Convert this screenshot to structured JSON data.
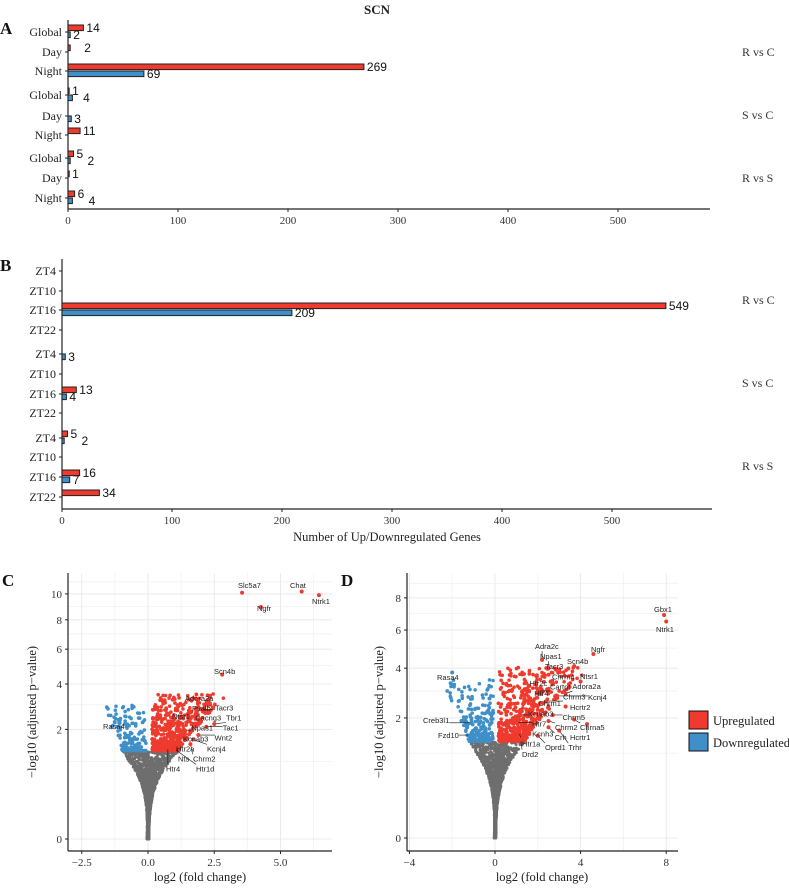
{
  "figure": {
    "title": "SCN",
    "panel_labels": [
      "A",
      "B",
      "C",
      "D"
    ],
    "legend": {
      "items": [
        {
          "label": "Upregulated",
          "color": "#EE3B2E"
        },
        {
          "label": "Downregulated",
          "color": "#3F8FC8"
        }
      ]
    }
  },
  "chart_data": [
    {
      "type": "bar",
      "orientation": "horizontal",
      "panel": "A",
      "title": "SCN",
      "xlabel": "",
      "xlim": [
        0,
        580
      ],
      "xticks": [
        0,
        100,
        200,
        300,
        400,
        500
      ],
      "groups": [
        {
          "label": "R vs C",
          "categories": [
            "Global",
            "Day",
            "Night"
          ],
          "up": [
            14,
            2,
            269
          ],
          "down": [
            2,
            0,
            69
          ]
        },
        {
          "label": "S vs C",
          "categories": [
            "Global",
            "Day",
            "Night"
          ],
          "up": [
            1,
            0,
            11
          ],
          "down": [
            4,
            3,
            0
          ]
        },
        {
          "label": "R vs S",
          "categories": [
            "Global",
            "Day",
            "Night"
          ],
          "up": [
            5,
            1,
            6
          ],
          "down": [
            2,
            0,
            4
          ]
        }
      ],
      "series_colors": {
        "up": "#EE3B2E",
        "down": "#3F8FC8"
      }
    },
    {
      "type": "bar",
      "orientation": "horizontal",
      "panel": "B",
      "xlabel": "Number of Up/Downregulated Genes",
      "xlim": [
        0,
        590
      ],
      "xticks": [
        0,
        100,
        200,
        300,
        400,
        500
      ],
      "groups": [
        {
          "label": "R vs C",
          "categories": [
            "ZT4",
            "ZT10",
            "ZT16",
            "ZT22"
          ],
          "up": [
            0,
            0,
            549,
            0
          ],
          "down": [
            0,
            0,
            209,
            0
          ]
        },
        {
          "label": "S vs C",
          "categories": [
            "ZT4",
            "ZT10",
            "ZT16",
            "ZT22"
          ],
          "up": [
            0,
            0,
            13,
            0
          ],
          "down": [
            3,
            0,
            4,
            0
          ]
        },
        {
          "label": "R vs S",
          "categories": [
            "ZT4",
            "ZT10",
            "ZT16",
            "ZT22"
          ],
          "up": [
            5,
            0,
            16,
            34
          ],
          "down": [
            2,
            0,
            7,
            0
          ]
        }
      ],
      "series_colors": {
        "up": "#EE3B2E",
        "down": "#3F8FC8"
      }
    },
    {
      "type": "scatter",
      "panel": "C",
      "xlabel": "log2 (fold change)",
      "ylabel": "−log10 (adjusted p−value)",
      "y_scale": "sqrt",
      "xticks": [
        -2.5,
        0,
        2.5,
        5
      ],
      "xtick_labels": [
        "−2.5",
        "0.0",
        "2.5",
        "5.0"
      ],
      "yticks": [
        0,
        2,
        4,
        6,
        8,
        10
      ],
      "xlim": [
        -3.0,
        7.0
      ],
      "ylim": [
        0,
        11.5
      ],
      "labeled_genes": [
        {
          "gene": "Slc5a7",
          "x": 3.55,
          "y": 10.1,
          "dir": "up"
        },
        {
          "gene": "Chat",
          "x": 5.8,
          "y": 10.2,
          "dir": "up"
        },
        {
          "gene": "Ntrk1",
          "x": 6.45,
          "y": 9.9,
          "dir": "up"
        },
        {
          "gene": "Ngfr",
          "x": 4.26,
          "y": 8.96,
          "dir": "up"
        },
        {
          "gene": "Scn4b",
          "x": 2.8,
          "y": 4.5,
          "dir": "up"
        },
        {
          "gene": "Adora2a",
          "x": 1.9,
          "y": 2.9,
          "dir": "up"
        },
        {
          "gene": "Tacr3",
          "x": 2.0,
          "y": 2.8,
          "dir": "up"
        },
        {
          "gene": "Pvalb",
          "x": 1.5,
          "y": 2.6,
          "dir": "up"
        },
        {
          "gene": "Ntsr1",
          "x": 1.0,
          "y": 2.4,
          "dir": "up"
        },
        {
          "gene": "Cacng3",
          "x": 1.7,
          "y": 2.2,
          "dir": "up"
        },
        {
          "gene": "Tbr1",
          "x": 2.5,
          "y": 2.2,
          "dir": "up"
        },
        {
          "gene": "Tac1",
          "x": 2.2,
          "y": 2.1,
          "dir": "up"
        },
        {
          "gene": "Npas1",
          "x": 1.4,
          "y": 1.95,
          "dir": "up"
        },
        {
          "gene": "Wnt2",
          "x": 1.9,
          "y": 1.8,
          "dir": "up"
        },
        {
          "gene": "Kcnab3",
          "x": 1.2,
          "y": 1.75,
          "dir": "up"
        },
        {
          "gene": "Kcnj4",
          "x": 1.7,
          "y": 1.65,
          "dir": "up"
        },
        {
          "gene": "Htr2a",
          "x": 0.9,
          "y": 1.6,
          "dir": "up"
        },
        {
          "gene": "Nts",
          "x": 1.1,
          "y": 1.45,
          "dir": "up"
        },
        {
          "gene": "Chrm2",
          "x": 1.6,
          "y": 1.5,
          "dir": "up"
        },
        {
          "gene": "Htr1d",
          "x": 1.0,
          "y": 1.35,
          "dir": "up"
        },
        {
          "gene": "Htr4",
          "x": 0.75,
          "y": 1.4,
          "dir": "up"
        },
        {
          "gene": "Rasa4",
          "x": -0.8,
          "y": 2.1,
          "dir": "down"
        }
      ]
    },
    {
      "type": "scatter",
      "panel": "D",
      "xlabel": "log2 (fold change)",
      "ylabel": "−log10 (adjusted p−value)",
      "y_scale": "sqrt",
      "xticks": [
        -4,
        0,
        4,
        8
      ],
      "xtick_labels": [
        "−4",
        "0",
        "4",
        "8"
      ],
      "yticks": [
        0,
        2,
        4,
        6,
        8
      ],
      "xlim": [
        -4.2,
        8.5
      ],
      "ylim": [
        0,
        9.5
      ],
      "labeled_genes": [
        {
          "gene": "Gbx1",
          "x": 7.9,
          "y": 6.9,
          "dir": "up"
        },
        {
          "gene": "Ntrk1",
          "x": 8.0,
          "y": 6.5,
          "dir": "up"
        },
        {
          "gene": "Ngfr",
          "x": 4.6,
          "y": 4.7,
          "dir": "up"
        },
        {
          "gene": "Scn4b",
          "x": 3.7,
          "y": 4.1,
          "dir": "up"
        },
        {
          "gene": "Ntsr1",
          "x": 4.0,
          "y": 3.4,
          "dir": "up"
        },
        {
          "gene": "Adra2c",
          "x": 2.2,
          "y": 4.4,
          "dir": "up"
        },
        {
          "gene": "Npas1",
          "x": 2.5,
          "y": 4.0,
          "dir": "up"
        },
        {
          "gene": "Tacr3",
          "x": 2.5,
          "y": 3.7,
          "dir": "up"
        },
        {
          "gene": "Htr2c",
          "x": 1.5,
          "y": 3.1,
          "dir": "up"
        },
        {
          "gene": "Chrm4",
          "x": 2.6,
          "y": 3.4,
          "dir": "up"
        },
        {
          "gene": "Cartpt",
          "x": 2.0,
          "y": 3.0,
          "dir": "up"
        },
        {
          "gene": "Htr4",
          "x": 1.6,
          "y": 2.7,
          "dir": "up"
        },
        {
          "gene": "Adora2a",
          "x": 3.3,
          "y": 2.9,
          "dir": "up"
        },
        {
          "gene": "Chrm3",
          "x": 2.4,
          "y": 2.6,
          "dir": "up"
        },
        {
          "gene": "Kcnj4",
          "x": 2.9,
          "y": 2.8,
          "dir": "up"
        },
        {
          "gene": "Chrm1",
          "x": 1.8,
          "y": 2.5,
          "dir": "up"
        },
        {
          "gene": "Hcrtr2",
          "x": 3.3,
          "y": 2.4,
          "dir": "up"
        },
        {
          "gene": "Kcnab3",
          "x": 1.2,
          "y": 2.1,
          "dir": "up"
        },
        {
          "gene": "Chrm5",
          "x": 2.7,
          "y": 2.1,
          "dir": "up"
        },
        {
          "gene": "Chrm2",
          "x": 2.5,
          "y": 1.9,
          "dir": "up"
        },
        {
          "gene": "Chrna5",
          "x": 3.7,
          "y": 1.95,
          "dir": "up"
        },
        {
          "gene": "Htr7",
          "x": 1.0,
          "y": 1.85,
          "dir": "up"
        },
        {
          "gene": "Crh",
          "x": 2.5,
          "y": 1.7,
          "dir": "up"
        },
        {
          "gene": "Hcrtr1",
          "x": 4.3,
          "y": 1.8,
          "dir": "up"
        },
        {
          "gene": "Kcnh3",
          "x": 1.6,
          "y": 1.5,
          "dir": "up"
        },
        {
          "gene": "Trhr",
          "x": 3.0,
          "y": 1.6,
          "dir": "up"
        },
        {
          "gene": "Htr1a",
          "x": 1.1,
          "y": 1.55,
          "dir": "up"
        },
        {
          "gene": "Oprd1",
          "x": 2.0,
          "y": 1.45,
          "dir": "up"
        },
        {
          "gene": "Drd2",
          "x": 1.2,
          "y": 1.35,
          "dir": "up"
        },
        {
          "gene": "Rasa4",
          "x": -2.0,
          "y": 3.8,
          "dir": "down"
        },
        {
          "gene": "Creb3l1",
          "x": -1.1,
          "y": 1.84,
          "dir": "down"
        },
        {
          "gene": "Fzd10",
          "x": -1.15,
          "y": 1.47,
          "dir": "down"
        }
      ]
    }
  ]
}
